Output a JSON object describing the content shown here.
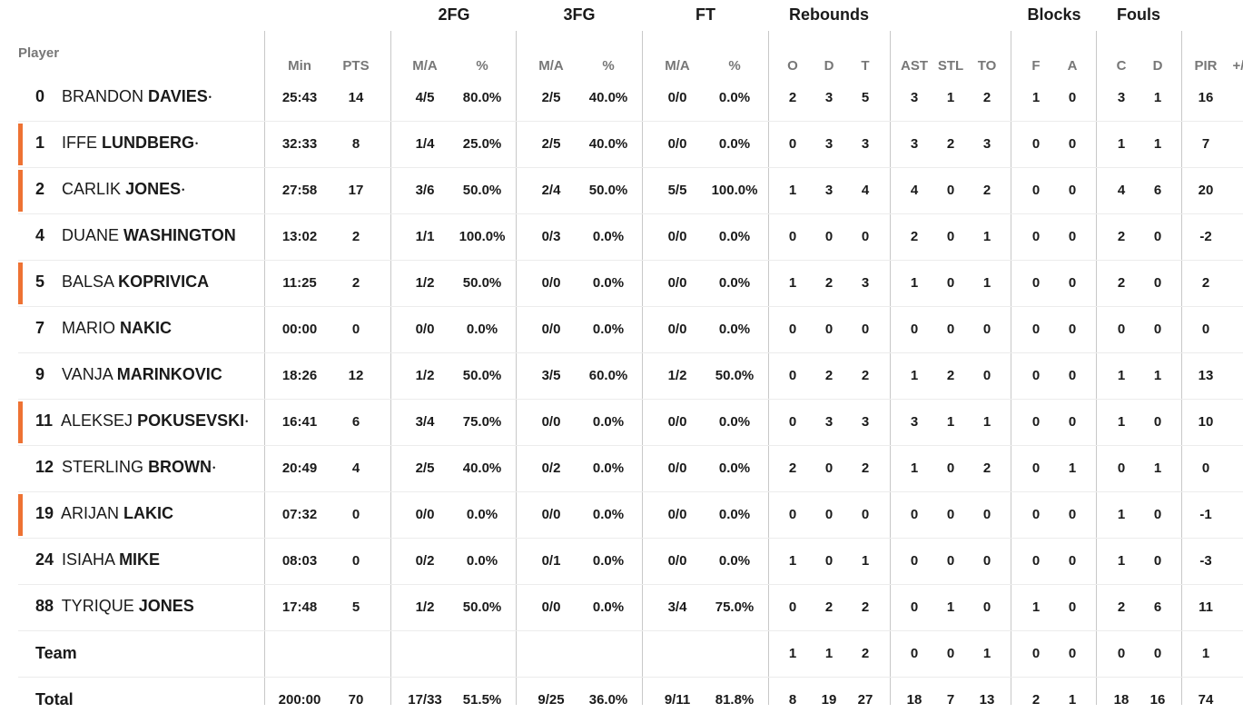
{
  "group_headers": {
    "fg2": "2FG",
    "fg3": "3FG",
    "ft": "FT",
    "rebounds": "Rebounds",
    "blocks": "Blocks",
    "fouls": "Fouls"
  },
  "column_headers": {
    "player": "Player",
    "min": "Min",
    "pts": "PTS",
    "fg2_ma": "M/A",
    "fg2_pct": "%",
    "fg3_ma": "M/A",
    "fg3_pct": "%",
    "ft_ma": "M/A",
    "ft_pct": "%",
    "o": "O",
    "d": "D",
    "t": "T",
    "ast": "AST",
    "stl": "STL",
    "to": "TO",
    "bf": "F",
    "ba": "A",
    "fc": "C",
    "fd": "D",
    "pir": "PIR",
    "pm": "+/"
  },
  "colors": {
    "starter_marker": "#ee7233",
    "divider": "#c8c8c8"
  },
  "players": [
    {
      "num": "0",
      "first": "BRANDON",
      "last": "DAVIES",
      "dot": "•",
      "starter": false,
      "min": "25:43",
      "pts": "14",
      "fg2_ma": "4/5",
      "fg2_pct": "80.0%",
      "fg3_ma": "2/5",
      "fg3_pct": "40.0%",
      "ft_ma": "0/0",
      "ft_pct": "0.0%",
      "o": "2",
      "d": "3",
      "t": "5",
      "ast": "3",
      "stl": "1",
      "to": "2",
      "bf": "1",
      "ba": "0",
      "fc": "3",
      "fd": "1",
      "pir": "16"
    },
    {
      "num": "1",
      "first": "IFFE",
      "last": "LUNDBERG",
      "dot": "•",
      "starter": true,
      "min": "32:33",
      "pts": "8",
      "fg2_ma": "1/4",
      "fg2_pct": "25.0%",
      "fg3_ma": "2/5",
      "fg3_pct": "40.0%",
      "ft_ma": "0/0",
      "ft_pct": "0.0%",
      "o": "0",
      "d": "3",
      "t": "3",
      "ast": "3",
      "stl": "2",
      "to": "3",
      "bf": "0",
      "ba": "0",
      "fc": "1",
      "fd": "1",
      "pir": "7"
    },
    {
      "num": "2",
      "first": "CARLIK",
      "last": "JONES",
      "dot": "•",
      "starter": true,
      "min": "27:58",
      "pts": "17",
      "fg2_ma": "3/6",
      "fg2_pct": "50.0%",
      "fg3_ma": "2/4",
      "fg3_pct": "50.0%",
      "ft_ma": "5/5",
      "ft_pct": "100.0%",
      "o": "1",
      "d": "3",
      "t": "4",
      "ast": "4",
      "stl": "0",
      "to": "2",
      "bf": "0",
      "ba": "0",
      "fc": "4",
      "fd": "6",
      "pir": "20"
    },
    {
      "num": "4",
      "first": "DUANE",
      "last": "WASHINGTON",
      "dot": "",
      "starter": false,
      "min": "13:02",
      "pts": "2",
      "fg2_ma": "1/1",
      "fg2_pct": "100.0%",
      "fg3_ma": "0/3",
      "fg3_pct": "0.0%",
      "ft_ma": "0/0",
      "ft_pct": "0.0%",
      "o": "0",
      "d": "0",
      "t": "0",
      "ast": "2",
      "stl": "0",
      "to": "1",
      "bf": "0",
      "ba": "0",
      "fc": "2",
      "fd": "0",
      "pir": "-2"
    },
    {
      "num": "5",
      "first": "BALSA",
      "last": "KOPRIVICA",
      "dot": "",
      "starter": true,
      "min": "11:25",
      "pts": "2",
      "fg2_ma": "1/2",
      "fg2_pct": "50.0%",
      "fg3_ma": "0/0",
      "fg3_pct": "0.0%",
      "ft_ma": "0/0",
      "ft_pct": "0.0%",
      "o": "1",
      "d": "2",
      "t": "3",
      "ast": "1",
      "stl": "0",
      "to": "1",
      "bf": "0",
      "ba": "0",
      "fc": "2",
      "fd": "0",
      "pir": "2"
    },
    {
      "num": "7",
      "first": "MARIO",
      "last": "NAKIC",
      "dot": "",
      "starter": false,
      "min": "00:00",
      "pts": "0",
      "fg2_ma": "0/0",
      "fg2_pct": "0.0%",
      "fg3_ma": "0/0",
      "fg3_pct": "0.0%",
      "ft_ma": "0/0",
      "ft_pct": "0.0%",
      "o": "0",
      "d": "0",
      "t": "0",
      "ast": "0",
      "stl": "0",
      "to": "0",
      "bf": "0",
      "ba": "0",
      "fc": "0",
      "fd": "0",
      "pir": "0"
    },
    {
      "num": "9",
      "first": "VANJA",
      "last": "MARINKOVIC",
      "dot": "",
      "starter": false,
      "min": "18:26",
      "pts": "12",
      "fg2_ma": "1/2",
      "fg2_pct": "50.0%",
      "fg3_ma": "3/5",
      "fg3_pct": "60.0%",
      "ft_ma": "1/2",
      "ft_pct": "50.0%",
      "o": "0",
      "d": "2",
      "t": "2",
      "ast": "1",
      "stl": "2",
      "to": "0",
      "bf": "0",
      "ba": "0",
      "fc": "1",
      "fd": "1",
      "pir": "13"
    },
    {
      "num": "11",
      "first": "ALEKSEJ",
      "last": "POKUSEVSKI",
      "dot": "•",
      "starter": true,
      "min": "16:41",
      "pts": "6",
      "fg2_ma": "3/4",
      "fg2_pct": "75.0%",
      "fg3_ma": "0/0",
      "fg3_pct": "0.0%",
      "ft_ma": "0/0",
      "ft_pct": "0.0%",
      "o": "0",
      "d": "3",
      "t": "3",
      "ast": "3",
      "stl": "1",
      "to": "1",
      "bf": "0",
      "ba": "0",
      "fc": "1",
      "fd": "0",
      "pir": "10"
    },
    {
      "num": "12",
      "first": "STERLING",
      "last": "BROWN",
      "dot": "•",
      "starter": false,
      "min": "20:49",
      "pts": "4",
      "fg2_ma": "2/5",
      "fg2_pct": "40.0%",
      "fg3_ma": "0/2",
      "fg3_pct": "0.0%",
      "ft_ma": "0/0",
      "ft_pct": "0.0%",
      "o": "2",
      "d": "0",
      "t": "2",
      "ast": "1",
      "stl": "0",
      "to": "2",
      "bf": "0",
      "ba": "1",
      "fc": "0",
      "fd": "1",
      "pir": "0"
    },
    {
      "num": "19",
      "first": "ARIJAN",
      "last": "LAKIC",
      "dot": "",
      "starter": true,
      "min": "07:32",
      "pts": "0",
      "fg2_ma": "0/0",
      "fg2_pct": "0.0%",
      "fg3_ma": "0/0",
      "fg3_pct": "0.0%",
      "ft_ma": "0/0",
      "ft_pct": "0.0%",
      "o": "0",
      "d": "0",
      "t": "0",
      "ast": "0",
      "stl": "0",
      "to": "0",
      "bf": "0",
      "ba": "0",
      "fc": "1",
      "fd": "0",
      "pir": "-1"
    },
    {
      "num": "24",
      "first": "ISIAHA",
      "last": "MIKE",
      "dot": "",
      "starter": false,
      "min": "08:03",
      "pts": "0",
      "fg2_ma": "0/2",
      "fg2_pct": "0.0%",
      "fg3_ma": "0/1",
      "fg3_pct": "0.0%",
      "ft_ma": "0/0",
      "ft_pct": "0.0%",
      "o": "1",
      "d": "0",
      "t": "1",
      "ast": "0",
      "stl": "0",
      "to": "0",
      "bf": "0",
      "ba": "0",
      "fc": "1",
      "fd": "0",
      "pir": "-3"
    },
    {
      "num": "88",
      "first": "TYRIQUE",
      "last": "JONES",
      "dot": "",
      "starter": false,
      "min": "17:48",
      "pts": "5",
      "fg2_ma": "1/2",
      "fg2_pct": "50.0%",
      "fg3_ma": "0/0",
      "fg3_pct": "0.0%",
      "ft_ma": "3/4",
      "ft_pct": "75.0%",
      "o": "0",
      "d": "2",
      "t": "2",
      "ast": "0",
      "stl": "1",
      "to": "0",
      "bf": "1",
      "ba": "0",
      "fc": "2",
      "fd": "6",
      "pir": "11"
    }
  ],
  "team": {
    "label": "Team",
    "min": "",
    "pts": "",
    "fg2_ma": "",
    "fg2_pct": "",
    "fg3_ma": "",
    "fg3_pct": "",
    "ft_ma": "",
    "ft_pct": "",
    "o": "1",
    "d": "1",
    "t": "2",
    "ast": "0",
    "stl": "0",
    "to": "1",
    "bf": "0",
    "ba": "0",
    "fc": "0",
    "fd": "0",
    "pir": "1"
  },
  "total": {
    "label": "Total",
    "min": "200:00",
    "pts": "70",
    "fg2_ma": "17/33",
    "fg2_pct": "51.5%",
    "fg3_ma": "9/25",
    "fg3_pct": "36.0%",
    "ft_ma": "9/11",
    "ft_pct": "81.8%",
    "o": "8",
    "d": "19",
    "t": "27",
    "ast": "18",
    "stl": "7",
    "to": "13",
    "bf": "2",
    "ba": "1",
    "fc": "18",
    "fd": "16",
    "pir": "74"
  }
}
